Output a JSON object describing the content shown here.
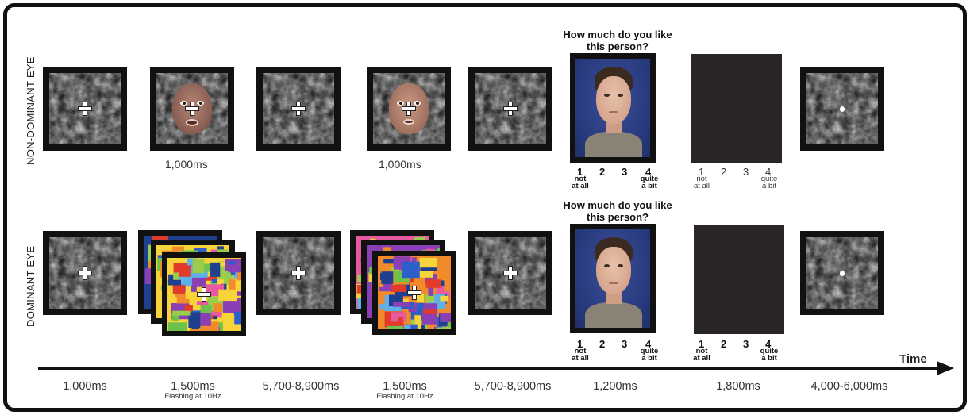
{
  "rows": {
    "top_label": "NON-DOMINANT EYE",
    "bottom_label": "DOMINANT EYE"
  },
  "question": {
    "line1": "How much do you like",
    "line2": "this person?"
  },
  "rating_scale": {
    "n1": "1",
    "n2": "2",
    "n3": "3",
    "n4": "4",
    "low_anchor_line1": "not",
    "low_anchor_line2": "at all",
    "high_anchor_line1": "quite",
    "high_anchor_line2": "a bit"
  },
  "top_timings": {
    "face1": "1,000ms",
    "face2": "1,000ms"
  },
  "timeline": {
    "axis_label": "Time",
    "steps": [
      {
        "duration": "1,000ms",
        "note": ""
      },
      {
        "duration": "1,500ms",
        "note": "Flashing at 10Hz"
      },
      {
        "duration": "5,700-8,900ms",
        "note": ""
      },
      {
        "duration": "1,500ms",
        "note": "Flashing at 10Hz"
      },
      {
        "duration": "5,700-8,900ms",
        "note": ""
      },
      {
        "duration": "1,200ms",
        "note": ""
      },
      {
        "duration": "1,800ms",
        "note": ""
      },
      {
        "duration": "4,000-6,000ms",
        "note": ""
      }
    ]
  },
  "colors": {
    "frame": "#111111",
    "photo_background": "#283a7d",
    "blank_screen": "#2a2628"
  },
  "icons": {
    "fixation": "fixation-cross-icon",
    "probe": "probe-dot-icon"
  }
}
